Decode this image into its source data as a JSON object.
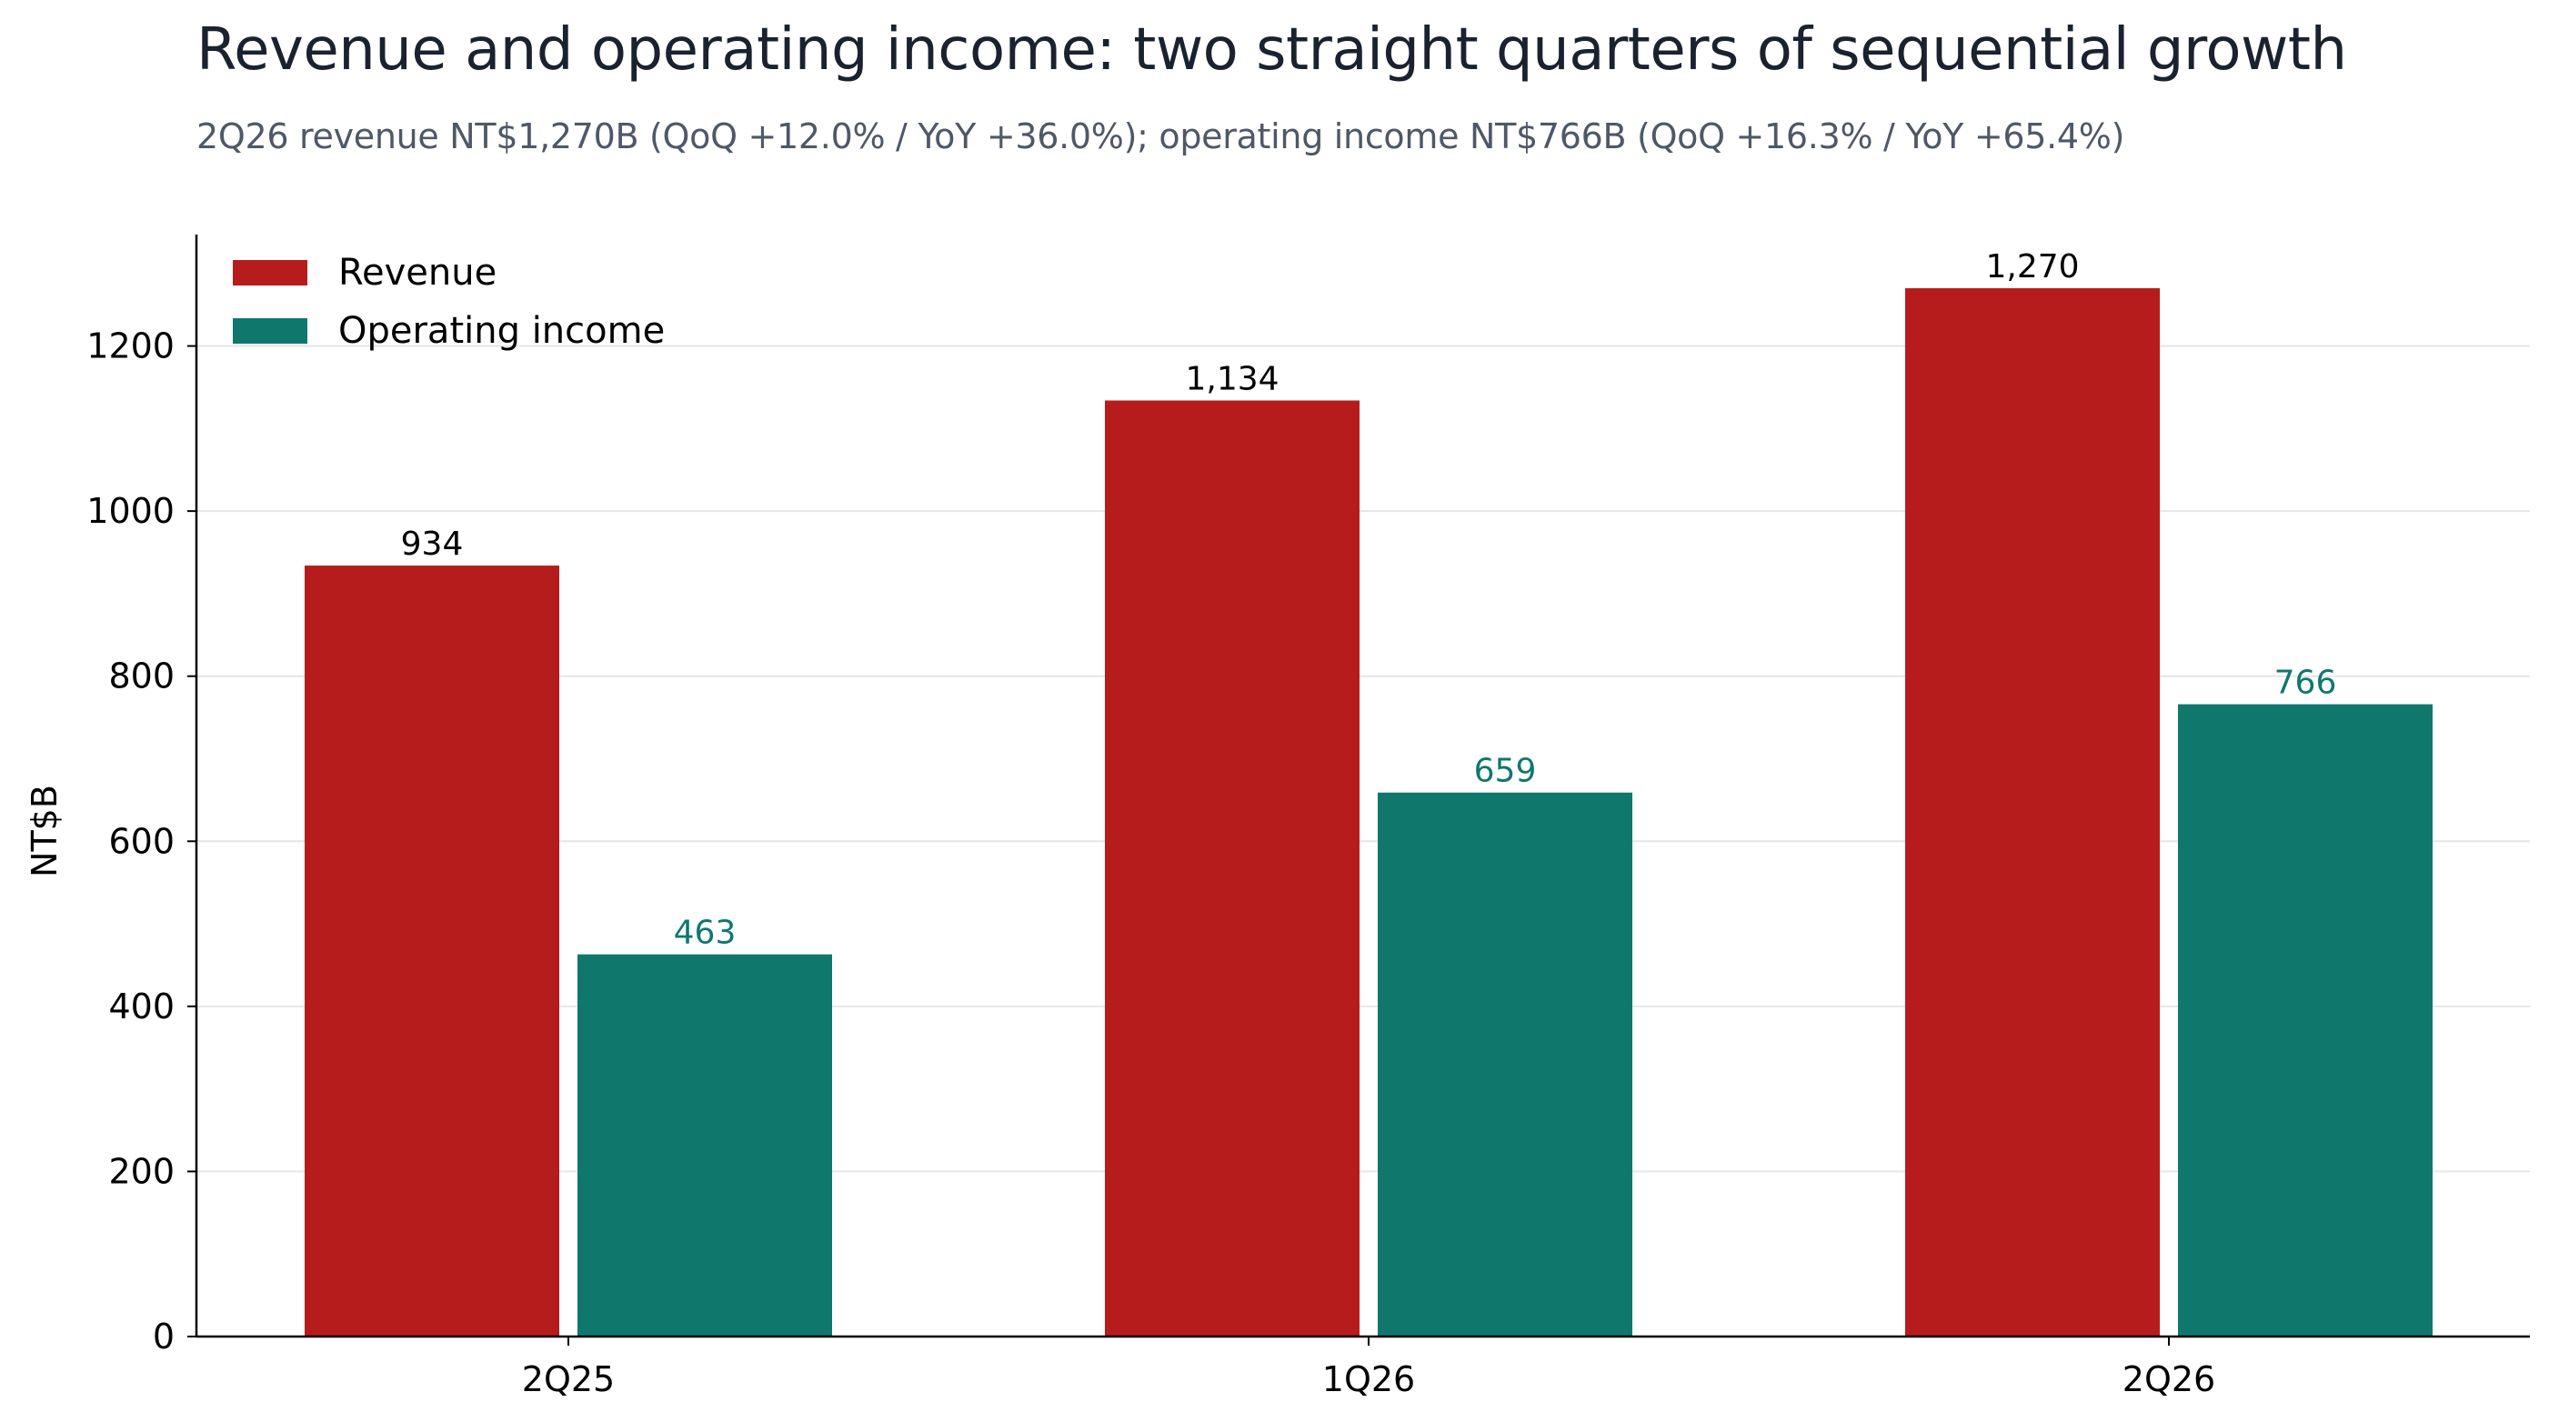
{
  "chart_data": {
    "type": "bar",
    "title": "Revenue and operating income: two straight quarters of sequential growth",
    "subtitle": "2Q26 revenue NT$1,270B (QoQ +12.0% / YoY +36.0%); operating income NT$766B (QoQ +16.3% / YoY +65.4%)",
    "ylabel": "NT$B",
    "ylim": [
      0,
      1335
    ],
    "yticks": [
      0,
      200,
      400,
      600,
      800,
      1000,
      1200
    ],
    "grid": true,
    "legend_position": "top-left",
    "categories": [
      "2Q25",
      "1Q26",
      "2Q26"
    ],
    "series": [
      {
        "name": "Revenue",
        "color": "#b71c1c",
        "label_color": "#000000",
        "values": [
          934,
          1134,
          1270
        ],
        "labels": [
          "934",
          "1,134",
          "1,270"
        ]
      },
      {
        "name": "Operating income",
        "color": "#10776d",
        "label_color": "#10776d",
        "values": [
          463,
          659,
          766
        ],
        "labels": [
          "463",
          "659",
          "766"
        ]
      }
    ]
  }
}
